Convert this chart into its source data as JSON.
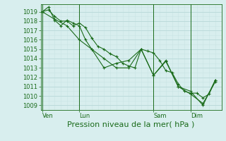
{
  "bg_color": "#d8eeee",
  "grid_color_major": "#b8d8d8",
  "grid_color_minor": "#c8e4e4",
  "line_color": "#1a6b1a",
  "marker_color": "#1a6b1a",
  "ylabel_ticks": [
    1009,
    1010,
    1011,
    1012,
    1013,
    1014,
    1015,
    1016,
    1017,
    1018,
    1019
  ],
  "ylim": [
    1008.5,
    1019.8
  ],
  "xlabel": "Pression niveau de la mer( hPa )",
  "xlabel_fontsize": 8,
  "tick_label_fontsize": 6,
  "day_labels": [
    "Ven",
    "Lun",
    "Sam",
    "Dim"
  ],
  "day_positions": [
    0,
    24,
    72,
    96
  ],
  "vline_positions": [
    0,
    24,
    72,
    96
  ],
  "xlim": [
    -1,
    116
  ],
  "series1_x": [
    0,
    4,
    8,
    12,
    16,
    20,
    24,
    28,
    32,
    36,
    40,
    44,
    48,
    52,
    56,
    60,
    64,
    68,
    72,
    76,
    80,
    84,
    88,
    92,
    96,
    100,
    104,
    108,
    112
  ],
  "series1_y": [
    1019.0,
    1019.2,
    1018.5,
    1018.0,
    1018.0,
    1017.5,
    1017.8,
    1017.3,
    1016.2,
    1015.3,
    1015.0,
    1014.5,
    1014.2,
    1013.5,
    1013.2,
    1013.0,
    1015.0,
    1014.8,
    1014.6,
    1013.8,
    1012.7,
    1012.5,
    1011.3,
    1010.5,
    1010.3,
    1010.3,
    1009.8,
    1010.2,
    1011.7
  ],
  "series2_x": [
    0,
    4,
    8,
    12,
    16,
    20,
    24,
    28,
    32,
    40,
    48,
    56,
    64,
    72,
    80,
    88,
    96,
    104,
    112
  ],
  "series2_y": [
    1019.0,
    1019.5,
    1018.1,
    1017.5,
    1018.1,
    1017.8,
    1017.5,
    1016.0,
    1015.0,
    1013.0,
    1013.5,
    1013.8,
    1015.0,
    1012.2,
    1013.8,
    1011.0,
    1010.5,
    1009.0,
    1011.7
  ],
  "series3_x": [
    0,
    8,
    16,
    24,
    32,
    40,
    48,
    56,
    64,
    72,
    80,
    88,
    96,
    104,
    112
  ],
  "series3_y": [
    1019.0,
    1018.2,
    1017.5,
    1016.0,
    1015.0,
    1014.0,
    1013.0,
    1013.0,
    1015.0,
    1012.2,
    1013.7,
    1011.0,
    1010.2,
    1009.2,
    1011.5
  ]
}
